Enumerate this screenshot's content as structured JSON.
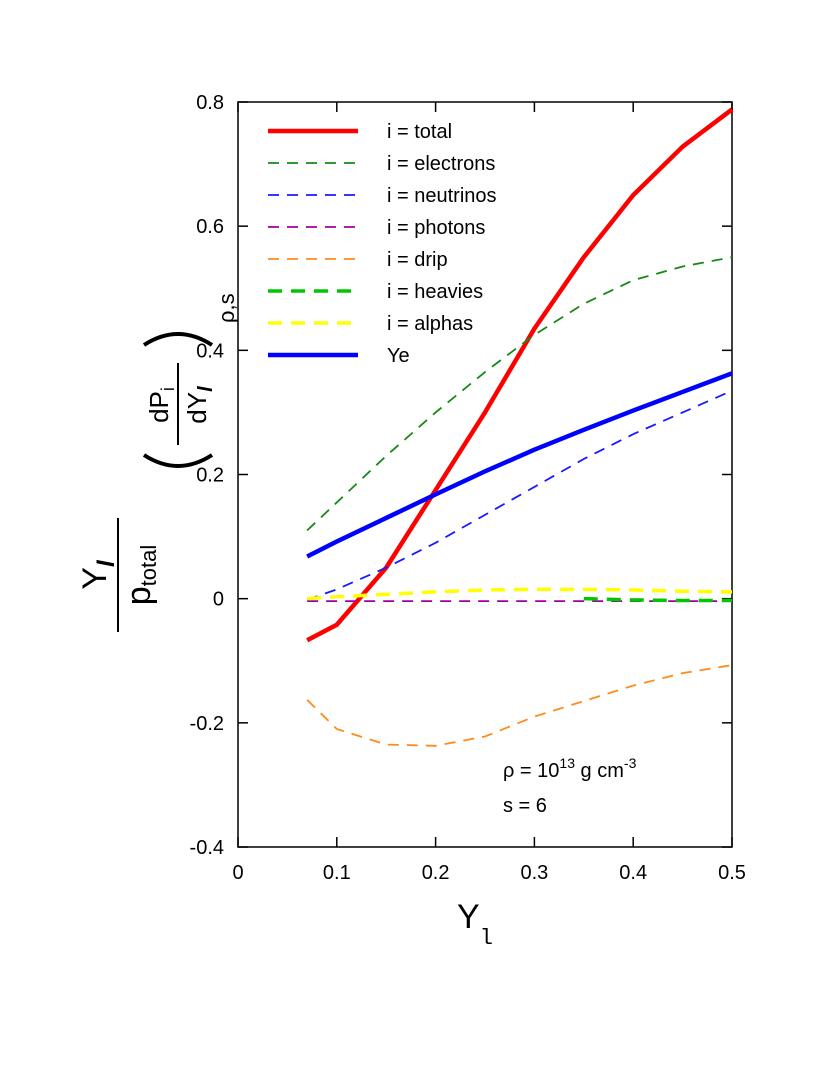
{
  "chart_data": {
    "type": "line",
    "x": [
      0.07,
      0.1,
      0.15,
      0.2,
      0.25,
      0.3,
      0.35,
      0.4,
      0.45,
      0.5
    ],
    "series": [
      {
        "name": "i = total",
        "color": "#ff0000",
        "dashed": false,
        "linewidth": 4.5,
        "values": [
          -0.067,
          -0.042,
          0.05,
          0.175,
          0.3,
          0.435,
          0.55,
          0.65,
          0.728,
          0.788
        ]
      },
      {
        "name": "i = electrons",
        "color": "#168a16",
        "dashed": true,
        "linewidth": 1.8,
        "values": [
          0.11,
          0.155,
          0.23,
          0.3,
          0.365,
          0.425,
          0.475,
          0.513,
          0.535,
          0.55
        ]
      },
      {
        "name": "i = neutrinos",
        "color": "#1a1aff",
        "dashed": true,
        "linewidth": 1.8,
        "values": [
          -0.002,
          0.015,
          0.05,
          0.09,
          0.135,
          0.18,
          0.225,
          0.265,
          0.3,
          0.335
        ]
      },
      {
        "name": "i = photons",
        "color": "#a000a0",
        "dashed": true,
        "linewidth": 1.8,
        "values": [
          -0.004,
          -0.004,
          -0.004,
          -0.004,
          -0.004,
          -0.004,
          -0.004,
          -0.004,
          -0.004,
          -0.004
        ]
      },
      {
        "name": "i = drip",
        "color": "#ff8c1a",
        "dashed": true,
        "linewidth": 1.8,
        "values": [
          -0.163,
          -0.21,
          -0.235,
          -0.237,
          -0.222,
          -0.19,
          -0.165,
          -0.14,
          -0.12,
          -0.107
        ]
      },
      {
        "name": "i = heavies",
        "color": "#00c800",
        "dashed": true,
        "linewidth": 3.5,
        "values": [
          null,
          null,
          null,
          null,
          null,
          null,
          0.0,
          -0.002,
          -0.003,
          -0.003
        ]
      },
      {
        "name": "i = alphas",
        "color": "#ffff00",
        "dashed": true,
        "linewidth": 3.5,
        "values": [
          0.0,
          0.003,
          0.007,
          0.011,
          0.014,
          0.015,
          0.015,
          0.014,
          0.012,
          0.011
        ]
      },
      {
        "name": "Ye",
        "color": "#0000ff",
        "dashed": false,
        "linewidth": 4.5,
        "values": [
          0.068,
          0.092,
          0.13,
          0.168,
          0.205,
          0.24,
          0.272,
          0.303,
          0.333,
          0.363
        ]
      }
    ],
    "xlim": [
      0,
      0.5
    ],
    "ylim": [
      -0.4,
      0.8
    ],
    "xticks": [
      0,
      0.1,
      0.2,
      0.3,
      0.4,
      0.5
    ],
    "yticks": [
      -0.4,
      -0.2,
      0,
      0.2,
      0.4,
      0.6,
      0.8
    ],
    "xlabel": {
      "main": "Y",
      "sub": "l"
    },
    "ylabel": {
      "num": "Y",
      "num_sub": "l",
      "den": "p",
      "den_sub": "total",
      "dnum": "dP",
      "dnum_sub": "i",
      "dden": "dY",
      "dden_sub": "l",
      "outer_sub": "ρ,s"
    },
    "annotations": [
      {
        "parts": [
          "ρ = 10",
          "13",
          " g cm",
          "-3"
        ]
      },
      {
        "parts": [
          "s = 6"
        ]
      }
    ],
    "legend": "upper left"
  }
}
